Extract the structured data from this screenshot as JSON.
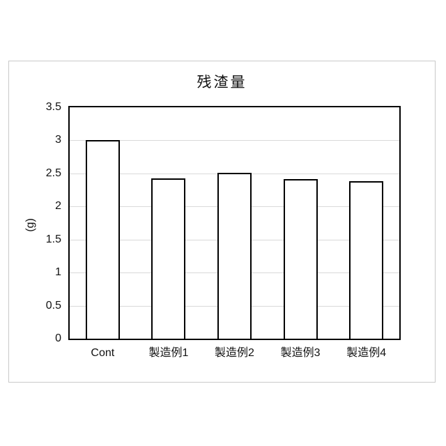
{
  "window": {
    "background": "#ffffff",
    "figure_border_color": "#c9c9c9"
  },
  "chart_data": {
    "type": "bar",
    "title": "残渣量",
    "xlabel": "",
    "ylabel": "(g)",
    "categories": [
      "Cont",
      "製造例1",
      "製造例2",
      "製造例3",
      "製造例4"
    ],
    "values": [
      3.0,
      2.42,
      2.51,
      2.41,
      2.38
    ],
    "ylim": [
      0,
      3.5
    ],
    "yticks": [
      0,
      0.5,
      1,
      1.5,
      2,
      2.5,
      3,
      3.5
    ],
    "grid": true,
    "legend_position": "none",
    "bar_fill": "#ffffff",
    "bar_border": "#000000",
    "gridline_color": "#d9d9d9",
    "axis_color": "#000000"
  }
}
